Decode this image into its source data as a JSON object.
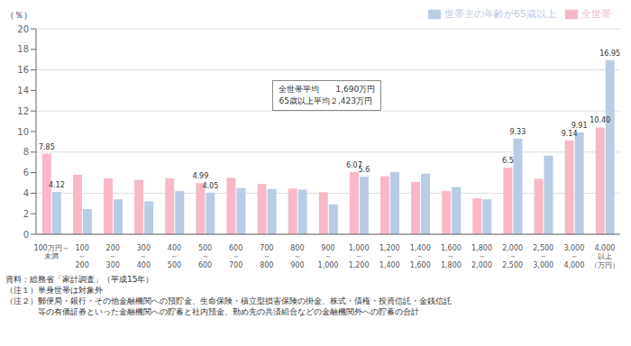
{
  "chart_data": {
    "type": "bar",
    "categories": [
      "100万円～\n未満",
      "100\n～\n200",
      "200\n～\n300",
      "300\n～\n400",
      "400\n～\n500",
      "500\n～\n600",
      "600\n～\n700",
      "700\n～\n800",
      "800\n～\n900",
      "900\n～\n1,000",
      "1,000\n～\n1,200",
      "1,200\n～\n1,400",
      "1,400\n～\n1,600",
      "1,600\n～\n1,800",
      "1,800\n～\n2,000",
      "2,000\n～\n2,500",
      "2,500\n～\n3,000",
      "3,000\n～\n4,000",
      "4,000\n以上\n（万円）"
    ],
    "series": [
      {
        "name": "全世帯",
        "color": "#f9b8c8",
        "values": [
          7.85,
          5.8,
          5.45,
          5.3,
          5.45,
          4.99,
          5.5,
          4.9,
          4.45,
          4.1,
          6.07,
          5.65,
          5.1,
          4.2,
          3.5,
          6.5,
          5.4,
          9.14,
          10.4
        ],
        "value_labels": [
          "7.85",
          null,
          null,
          null,
          null,
          "4.99",
          null,
          null,
          null,
          null,
          "6.07",
          null,
          null,
          null,
          null,
          "6.5",
          null,
          "9.14",
          "10.40"
        ]
      },
      {
        "name": "世帯主の年齢が65歳以上",
        "color": "#b8cce4",
        "values": [
          4.12,
          2.45,
          3.4,
          3.2,
          4.2,
          4.05,
          4.5,
          4.4,
          4.35,
          2.9,
          5.6,
          6.05,
          5.9,
          4.6,
          3.4,
          9.33,
          7.65,
          9.91,
          16.95
        ],
        "value_labels": [
          "4.12",
          null,
          null,
          null,
          null,
          "4.05",
          null,
          null,
          null,
          null,
          "5.6",
          null,
          null,
          null,
          null,
          "9.33",
          null,
          "9.91",
          "16.95"
        ]
      }
    ],
    "ylabel": "（％）",
    "ylim": [
      0,
      20
    ],
    "yticks": [
      0,
      2,
      4,
      6,
      8,
      10,
      12,
      14,
      16,
      18,
      20
    ],
    "grid": true,
    "legend": "upper right",
    "annotations": [
      "全世帯平均　　1,690万円\n65歳以上平均２,423万円"
    ],
    "notes": [
      "資料：総務省「家計調査」（平成15年）",
      "（注１）単身世帯は対象外",
      "（注２）郵便局・銀行・その他金融機関への預貯金、生命保険・積立型損害保険の掛金、株式・債権・投資信託・金銭信託",
      "　　　　等の有価証券といった金融機関への貯蓄と社内預金、勤め先の共済組合などの金融機関外への貯蓄の合計"
    ]
  }
}
